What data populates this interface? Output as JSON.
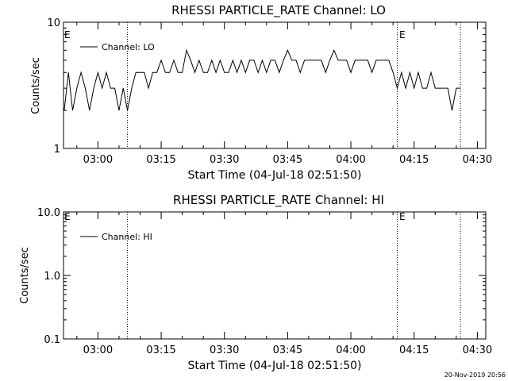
{
  "footer_timestamp": "20-Nov-2019 20:56",
  "chart_data": [
    {
      "type": "line",
      "title": "RHESSI PARTICLE_RATE Channel: LO",
      "xlabel": "Start Time (04-Jul-18 02:51:50)",
      "ylabel": "Counts/sec",
      "yscale": "log",
      "ylim": [
        1,
        10
      ],
      "y_tick_labels": [
        "1",
        "10"
      ],
      "xlim": [
        "02:51:50",
        "04:32:00"
      ],
      "x_tick_labels": [
        "03:00",
        "03:15",
        "03:30",
        "03:45",
        "04:00",
        "04:15",
        "04:30"
      ],
      "grid": false,
      "legend_position": "top-left",
      "series": [
        {
          "name": "Channel: LO",
          "x": [
            "02:52",
            "02:53",
            "02:54",
            "02:55",
            "02:56",
            "02:57",
            "02:58",
            "02:59",
            "03:00",
            "03:01",
            "03:02",
            "03:03",
            "03:04",
            "03:05",
            "03:06",
            "03:07",
            "03:08",
            "03:09",
            "03:10",
            "03:11",
            "03:12",
            "03:13",
            "03:14",
            "03:15",
            "03:16",
            "03:17",
            "03:18",
            "03:19",
            "03:20",
            "03:21",
            "03:22",
            "03:23",
            "03:24",
            "03:25",
            "03:26",
            "03:27",
            "03:28",
            "03:29",
            "03:30",
            "03:31",
            "03:32",
            "03:33",
            "03:34",
            "03:35",
            "03:36",
            "03:37",
            "03:38",
            "03:39",
            "03:40",
            "03:41",
            "03:42",
            "03:43",
            "03:44",
            "03:45",
            "03:46",
            "03:47",
            "03:48",
            "03:49",
            "03:50",
            "03:51",
            "03:52",
            "03:53",
            "03:54",
            "03:55",
            "03:56",
            "03:57",
            "03:58",
            "03:59",
            "04:00",
            "04:01",
            "04:02",
            "04:03",
            "04:04",
            "04:05",
            "04:06",
            "04:07",
            "04:08",
            "04:09",
            "04:10",
            "04:11",
            "04:12",
            "04:13",
            "04:14",
            "04:15",
            "04:16",
            "04:17",
            "04:18",
            "04:19",
            "04:20",
            "04:21",
            "04:22",
            "04:23",
            "04:24",
            "04:25",
            "04:26"
          ],
          "values": [
            2,
            4,
            2,
            3,
            4,
            3,
            2,
            3,
            4,
            3,
            4,
            3,
            3,
            2,
            3,
            2,
            3,
            4,
            4,
            4,
            3,
            4,
            4,
            5,
            4,
            4,
            5,
            4,
            4,
            6,
            5,
            4,
            5,
            4,
            4,
            5,
            4,
            5,
            4,
            4,
            5,
            4,
            5,
            4,
            5,
            5,
            4,
            5,
            4,
            5,
            5,
            4,
            5,
            6,
            5,
            5,
            4,
            5,
            5,
            5,
            5,
            5,
            4,
            5,
            6,
            5,
            5,
            5,
            4,
            5,
            5,
            5,
            5,
            4,
            5,
            5,
            5,
            5,
            4,
            3,
            4,
            3,
            4,
            3,
            4,
            3,
            3,
            4,
            3,
            3,
            3,
            3,
            2,
            3,
            3
          ]
        }
      ],
      "vertical_markers": [
        "03:07",
        "04:11",
        "04:26"
      ],
      "annotations": [
        "E",
        "E"
      ]
    },
    {
      "type": "line",
      "title": "RHESSI PARTICLE_RATE Channel: HI",
      "xlabel": "Start Time (04-Jul-18 02:51:50)",
      "ylabel": "Counts/sec",
      "yscale": "log",
      "ylim": [
        0.1,
        10
      ],
      "y_tick_labels": [
        "0.1",
        "1.0",
        "10.0"
      ],
      "xlim": [
        "02:51:50",
        "04:32:00"
      ],
      "x_tick_labels": [
        "03:00",
        "03:15",
        "03:30",
        "03:45",
        "04:00",
        "04:15",
        "04:30"
      ],
      "grid": false,
      "legend_position": "top-left",
      "series": [
        {
          "name": "Channel: HI",
          "x": [],
          "values": []
        }
      ],
      "vertical_markers": [
        "03:07",
        "04:11",
        "04:26"
      ],
      "annotations": [
        "E",
        "E"
      ]
    }
  ]
}
